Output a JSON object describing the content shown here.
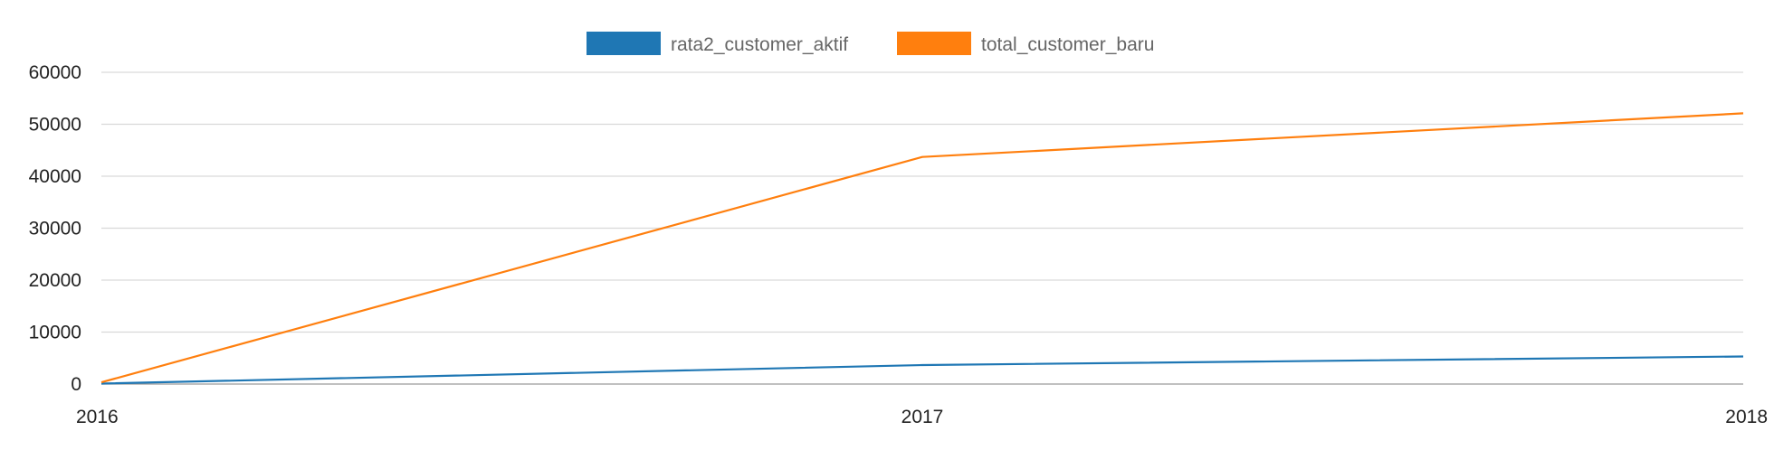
{
  "chart_data": {
    "type": "line",
    "title": "",
    "xlabel": "",
    "ylabel": "",
    "x": [
      "2016",
      "2017",
      "2018"
    ],
    "ylim": [
      0,
      60000
    ],
    "yticks": [
      "0",
      "10000",
      "20000",
      "30000",
      "40000",
      "50000",
      "60000"
    ],
    "grid": true,
    "legend_position": "top-center",
    "series": [
      {
        "name": "rata2_customer_aktif",
        "color": "#1f77b4",
        "values": [
          80,
          3650,
          5300
        ]
      },
      {
        "name": "total_customer_baru",
        "color": "#ff7f0e",
        "values": [
          330,
          43700,
          52100
        ]
      }
    ]
  }
}
